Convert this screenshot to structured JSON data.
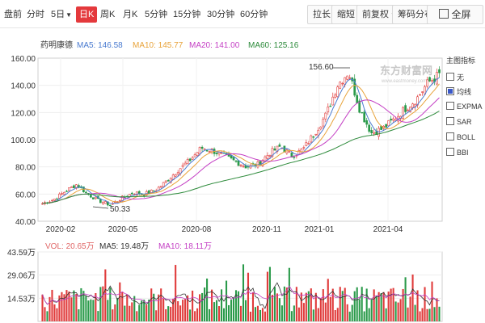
{
  "toolbar": {
    "left": [
      "盘前",
      "分时",
      "5日",
      "日K",
      "周K",
      "月K",
      "5分钟",
      "15分钟",
      "30分钟",
      "60分钟"
    ],
    "dropdown_marker": "▼",
    "active": "日K",
    "right": [
      "拉长",
      "缩短",
      "前复权",
      "筹码分布"
    ],
    "fullscreen": "全屏"
  },
  "stock_name": "药明康德",
  "ma_legend": [
    {
      "label": "MA5: 146.58",
      "color": "#4a7bd0"
    },
    {
      "label": "MA10: 145.77",
      "color": "#e8a33a"
    },
    {
      "label": "MA20: 141.00",
      "color": "#c43fc4"
    },
    {
      "label": "MA60: 125.16",
      "color": "#2c8a3a"
    }
  ],
  "vol_legend": [
    {
      "label": "VOL: 20.65万",
      "color": "#e06666"
    },
    {
      "label": "MA5: 19.48万",
      "color": "#333333"
    },
    {
      "label": "MA10: 18.11万",
      "color": "#c43fc4"
    }
  ],
  "side_panel": {
    "title": "主图指标",
    "items": [
      {
        "label": "无",
        "checked": false
      },
      {
        "label": "均线",
        "checked": true
      },
      {
        "label": "EXPMA",
        "checked": false
      },
      {
        "label": "SAR",
        "checked": false
      },
      {
        "label": "BOLL",
        "checked": false
      },
      {
        "label": "BBI",
        "checked": false
      }
    ]
  },
  "watermark": {
    "brand": "东方财富网",
    "url": "www.eastmoney.com"
  },
  "colors": {
    "up": "#e03b3b",
    "down": "#2a9a4a",
    "accent": "#e4393c"
  },
  "chart_data": [
    {
      "type": "candlestick",
      "title": "",
      "ylim": [
        40,
        160
      ],
      "yticks": [
        "160.00",
        "140.00",
        "120.00",
        "100.00",
        "80.00",
        "60.00",
        "40.00"
      ],
      "xticks": [
        "2020-02",
        "2020-05",
        "2020-08",
        "2020-11",
        "2021-01",
        "2021-04"
      ],
      "annotations": [
        {
          "text": "156.60",
          "type": "max"
        },
        {
          "text": "50.33",
          "type": "min"
        }
      ],
      "series": [
        {
          "name": "MA5",
          "color": "#4a7bd0"
        },
        {
          "name": "MA10",
          "color": "#e8a33a"
        },
        {
          "name": "MA20",
          "color": "#c43fc4"
        },
        {
          "name": "MA60",
          "color": "#2c8a3a"
        }
      ],
      "close_path": [
        [
          "2020-01",
          53
        ],
        [
          "2020-01",
          56
        ],
        [
          "2020-02",
          62
        ],
        [
          "2020-02",
          67
        ],
        [
          "2020-03",
          60
        ],
        [
          "2020-03",
          55
        ],
        [
          "2020-03",
          52
        ],
        [
          "2020-04",
          57
        ],
        [
          "2020-04",
          61
        ],
        [
          "2020-05",
          60
        ],
        [
          "2020-05",
          63
        ],
        [
          "2020-06",
          70
        ],
        [
          "2020-06",
          78
        ],
        [
          "2020-07",
          85
        ],
        [
          "2020-07",
          94
        ],
        [
          "2020-08",
          92
        ],
        [
          "2020-08",
          88
        ],
        [
          "2020-09",
          84
        ],
        [
          "2020-09",
          80
        ],
        [
          "2020-10",
          82
        ],
        [
          "2020-10",
          90
        ],
        [
          "2020-11",
          95
        ],
        [
          "2020-11",
          88
        ],
        [
          "2020-12",
          93
        ],
        [
          "2020-12",
          105
        ],
        [
          "2021-01",
          118
        ],
        [
          "2021-02",
          140
        ],
        [
          "2021-02",
          150
        ],
        [
          "2021-03",
          122
        ],
        [
          "2021-03",
          105
        ],
        [
          "2021-03",
          108
        ],
        [
          "2021-04",
          115
        ],
        [
          "2021-04",
          123
        ],
        [
          "2021-05",
          130
        ],
        [
          "2021-05",
          142
        ],
        [
          "2021-06",
          148
        ]
      ],
      "grid": true,
      "legend": "top-left"
    },
    {
      "type": "bar",
      "title": "",
      "ylim": [
        0,
        43.59
      ],
      "yticks": [
        "43.59万",
        "29.06万",
        "14.53万"
      ],
      "grid": true,
      "legend": "top-left"
    }
  ]
}
